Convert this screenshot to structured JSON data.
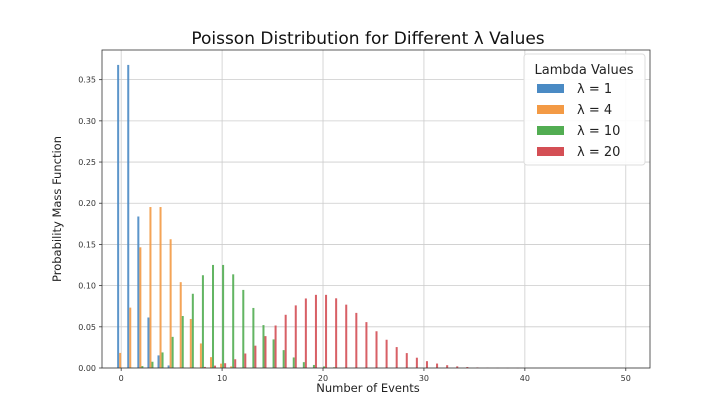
{
  "chart_data": {
    "type": "bar",
    "title": "Poisson Distribution for Different λ Values",
    "xlabel": "Number of Events",
    "ylabel": "Probability Mass Function",
    "xlim": [
      -1.9,
      52.4
    ],
    "ylim": [
      0,
      0.386
    ],
    "xticks": [
      "0",
      "10",
      "20",
      "30",
      "40",
      "50"
    ],
    "yticks": [
      "0.00",
      "0.05",
      "0.10",
      "0.15",
      "0.20",
      "0.25",
      "0.30",
      "0.35"
    ],
    "grid": true,
    "legend": {
      "title": "Lambda Values",
      "placement": "top-right"
    },
    "x": [
      0,
      1,
      2,
      3,
      4,
      5,
      6,
      7,
      8,
      9,
      10,
      11,
      12,
      13,
      14,
      15,
      16,
      17,
      18,
      19,
      20,
      21,
      22,
      23,
      24,
      25,
      26,
      27,
      28,
      29,
      30,
      31,
      32,
      33,
      34,
      35,
      36,
      37,
      38,
      39,
      40
    ],
    "series": [
      {
        "name": "λ = 1",
        "color": "#4a8ac4",
        "values": [
          0.3679,
          0.3679,
          0.1839,
          0.0613,
          0.0153,
          0.0031,
          0.0005,
          0.0001,
          0,
          0,
          0,
          0,
          0,
          0,
          0,
          0,
          0,
          0,
          0,
          0,
          0,
          0,
          0,
          0,
          0,
          0,
          0,
          0,
          0,
          0,
          0,
          0,
          0,
          0,
          0,
          0,
          0,
          0,
          0,
          0,
          0
        ]
      },
      {
        "name": "λ = 4",
        "color": "#f39a45",
        "values": [
          0.0183,
          0.0733,
          0.1465,
          0.1954,
          0.1954,
          0.1563,
          0.1042,
          0.0595,
          0.0298,
          0.0132,
          0.0053,
          0.0019,
          0.0006,
          0.0002,
          0.0001,
          0,
          0,
          0,
          0,
          0,
          0,
          0,
          0,
          0,
          0,
          0,
          0,
          0,
          0,
          0,
          0,
          0,
          0,
          0,
          0,
          0,
          0,
          0,
          0,
          0,
          0
        ]
      },
      {
        "name": "λ = 10",
        "color": "#52ad52",
        "values": [
          0.0,
          0.0005,
          0.0023,
          0.0076,
          0.0189,
          0.0378,
          0.0631,
          0.0901,
          0.1126,
          0.1251,
          0.1251,
          0.1137,
          0.0948,
          0.0729,
          0.0521,
          0.0347,
          0.0217,
          0.0128,
          0.0071,
          0.0037,
          0.0019,
          0.0009,
          0.0004,
          0.0002,
          0.0001,
          0,
          0,
          0,
          0,
          0,
          0,
          0,
          0,
          0,
          0,
          0,
          0,
          0,
          0,
          0,
          0
        ]
      },
      {
        "name": "λ = 20",
        "color": "#d44f55",
        "values": [
          0,
          0,
          0,
          0,
          0,
          0.0001,
          0.0002,
          0.0005,
          0.0013,
          0.0029,
          0.0058,
          0.0106,
          0.0176,
          0.0271,
          0.0387,
          0.0516,
          0.0646,
          0.076,
          0.0844,
          0.0888,
          0.0888,
          0.0846,
          0.0769,
          0.0669,
          0.0557,
          0.0446,
          0.0343,
          0.0254,
          0.0181,
          0.0125,
          0.0083,
          0.0054,
          0.0034,
          0.002,
          0.0012,
          0.0007,
          0.0004,
          0.0002,
          0.0001,
          0.0001,
          0.0
        ]
      }
    ]
  }
}
